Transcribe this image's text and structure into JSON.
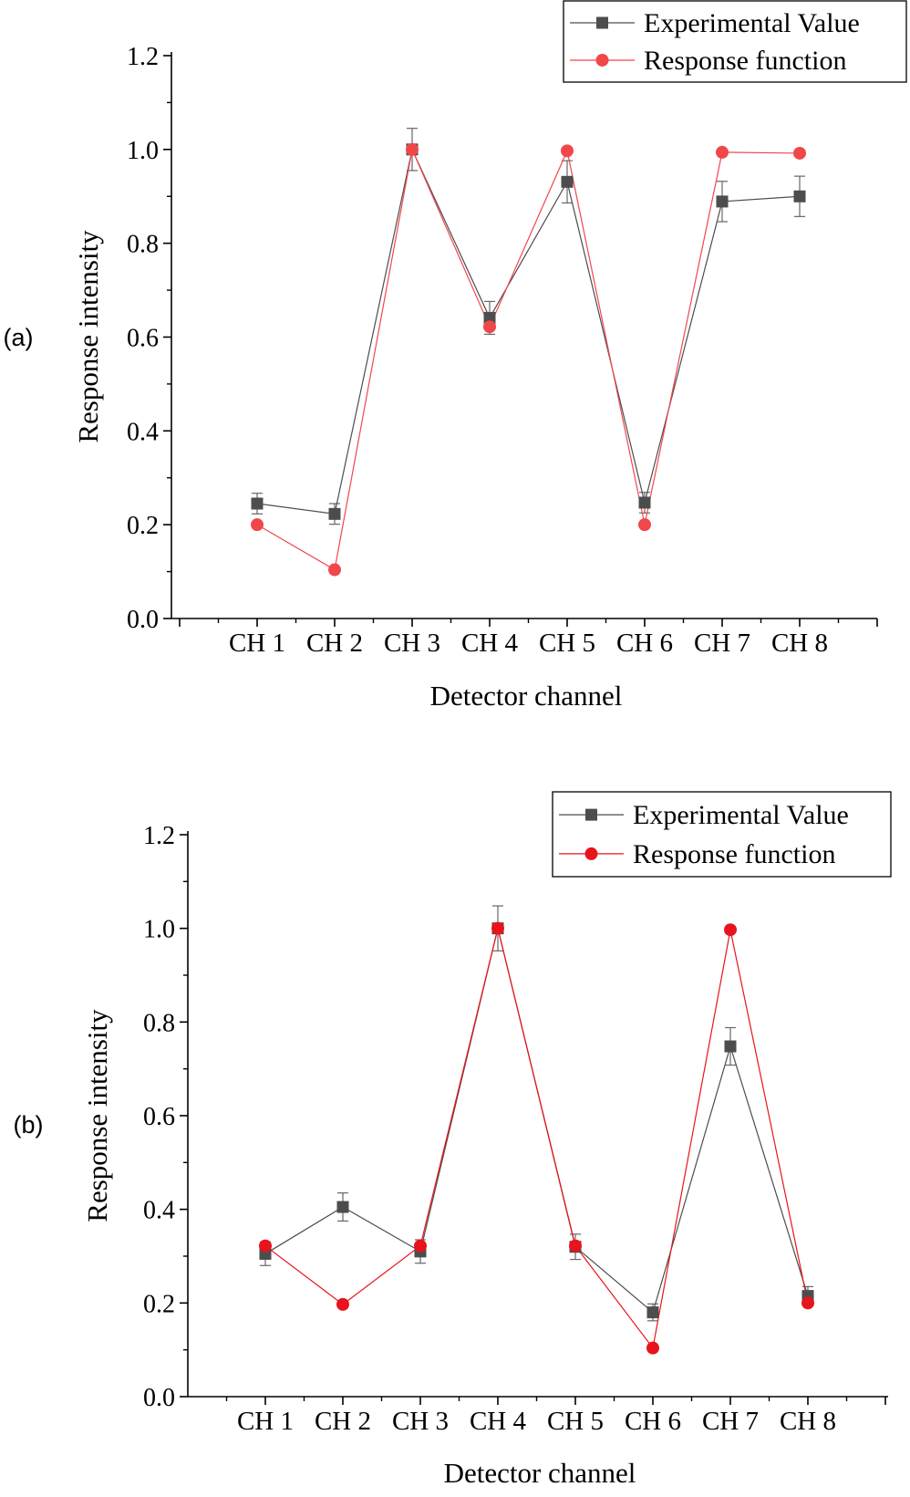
{
  "colors": {
    "experimental": "#4d4d4d",
    "response_a": "#f0474b",
    "response_b": "#e8141c",
    "axis": "#000000",
    "errorbar": "#666666"
  },
  "chart_data": [
    {
      "type": "line",
      "panel_label": "(a)",
      "title": "",
      "xlabel": "Detector channel",
      "ylabel": "Response intensity",
      "categories": [
        "CH 1",
        "CH 2",
        "CH 3",
        "CH 4",
        "CH 5",
        "CH 6",
        "CH 7",
        "CH 8"
      ],
      "ylim": [
        0.0,
        1.2
      ],
      "yticks": [
        "0.0",
        "0.2",
        "0.4",
        "0.6",
        "0.8",
        "1.0",
        "1.2"
      ],
      "grid": false,
      "legend_position": "top-right",
      "series": [
        {
          "name": "Experimental Value",
          "marker": "square",
          "values": [
            0.245,
            0.223,
            1.0,
            0.641,
            0.931,
            0.247,
            0.889,
            0.9
          ],
          "errors": [
            0.022,
            0.022,
            0.045,
            0.035,
            0.045,
            0.022,
            0.043,
            0.043
          ]
        },
        {
          "name": "Response function",
          "marker": "circle",
          "values": [
            0.2,
            0.104,
            1.0,
            0.622,
            0.997,
            0.2,
            0.994,
            0.992
          ]
        }
      ]
    },
    {
      "type": "line",
      "panel_label": "(b)",
      "title": "",
      "xlabel": "Detector channel",
      "ylabel": "Response intensity",
      "categories": [
        "CH 1",
        "CH 2",
        "CH 3",
        "CH 4",
        "CH 5",
        "CH 6",
        "CH 7",
        "CH 8"
      ],
      "ylim": [
        0.0,
        1.2
      ],
      "yticks": [
        "0.0",
        "0.2",
        "0.4",
        "0.6",
        "0.8",
        "1.0",
        "1.2"
      ],
      "grid": false,
      "legend_position": "top-right",
      "series": [
        {
          "name": "Experimental Value",
          "marker": "square",
          "values": [
            0.305,
            0.405,
            0.31,
            1.0,
            0.32,
            0.18,
            0.748,
            0.215
          ],
          "errors": [
            0.025,
            0.03,
            0.025,
            0.048,
            0.027,
            0.018,
            0.04,
            0.02
          ]
        },
        {
          "name": "Response function",
          "marker": "circle",
          "values": [
            0.322,
            0.197,
            0.322,
            1.0,
            0.322,
            0.104,
            0.997,
            0.2
          ]
        }
      ]
    }
  ]
}
